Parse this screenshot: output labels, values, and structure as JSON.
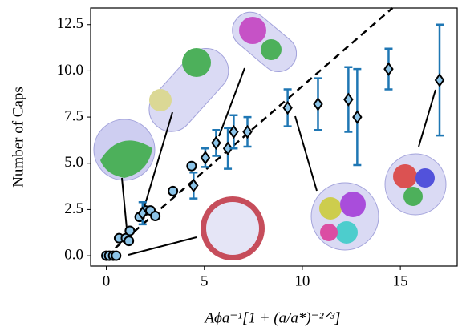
{
  "chart_data": {
    "type": "scatter",
    "x_label": "Aϕa⁻¹[1 + (a/a*)⁻²ᐟ³]",
    "y_label": "Number of Caps",
    "xlim": [
      -0.8,
      17.9
    ],
    "ylim": [
      -0.56,
      13.4
    ],
    "xticks": [
      0,
      5,
      10,
      15
    ],
    "yticks": [
      {
        "value": 0,
        "label": "0.0"
      },
      2.5,
      {
        "value": 5,
        "label": "5.0"
      },
      7.5,
      {
        "value": 10,
        "label": "10.0"
      },
      12.5
    ],
    "series": [
      {
        "marker": "line",
        "style": "dashed",
        "color": "#000000",
        "x": [
          0,
          14.6
        ],
        "values": [
          0,
          13.4
        ]
      },
      {
        "marker": "circle",
        "color": "#8cc4e8",
        "x": [
          0,
          0.15,
          0.35,
          0.5,
          0.65,
          1.0,
          1.15,
          1.2,
          1.7,
          2.0,
          2.25,
          2.5,
          3.4,
          4.35
        ],
        "values": [
          0,
          0,
          0,
          0,
          0.95,
          0.95,
          0.8,
          1.35,
          2.1,
          2.45,
          2.45,
          2.15,
          3.5,
          4.85
        ]
      },
      {
        "marker": "diamond",
        "color": "#8cc4e8",
        "error_color": "#1f77b4",
        "x": [
          1.85,
          4.45,
          5.05,
          5.6,
          6.2,
          6.5,
          7.2,
          9.25,
          10.8,
          12.35,
          12.8,
          14.4,
          17.0
        ],
        "values": [
          2.3,
          3.8,
          5.3,
          6.1,
          5.8,
          6.7,
          6.7,
          8.0,
          8.2,
          8.45,
          7.5,
          10.1,
          9.5
        ],
        "errors": [
          0.6,
          0.7,
          0.5,
          0.7,
          1.1,
          0.9,
          0.8,
          1.0,
          1.4,
          1.75,
          2.6,
          1.1,
          3.0
        ]
      }
    ]
  }
}
